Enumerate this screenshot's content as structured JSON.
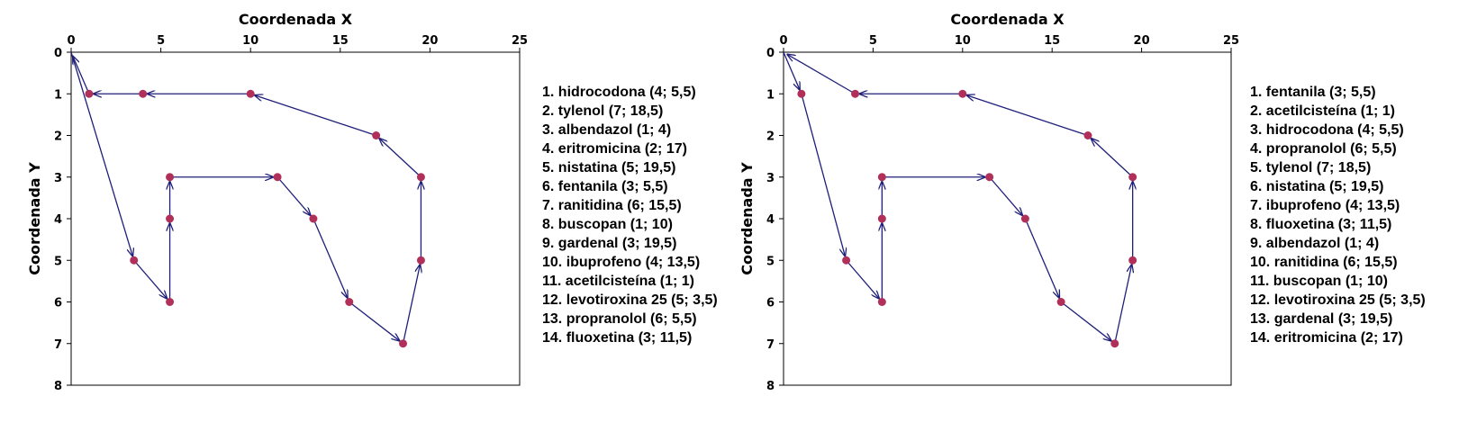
{
  "colors": {
    "line": "#1f1f7a",
    "marker": "#b0305a",
    "axis": "#000000"
  },
  "chart_data": [
    {
      "type": "line",
      "xlabel": "Coordenada X",
      "ylabel": "Coordenada Y",
      "xlim": [
        0,
        25
      ],
      "ylim": [
        8,
        0
      ],
      "xticks": [
        "0",
        "5",
        "10",
        "15",
        "20",
        "25"
      ],
      "yticks": [
        "0",
        "1",
        "2",
        "3",
        "4",
        "5",
        "6",
        "7",
        "8"
      ],
      "grid": false,
      "path": [
        [
          0,
          0
        ],
        [
          3.5,
          5
        ],
        [
          5.5,
          6
        ],
        [
          5.5,
          4
        ],
        [
          5.5,
          3
        ],
        [
          11.5,
          3
        ],
        [
          13.5,
          4
        ],
        [
          15.5,
          6
        ],
        [
          18.5,
          7
        ],
        [
          19.5,
          5
        ],
        [
          19.5,
          3
        ],
        [
          17,
          2
        ],
        [
          10,
          1
        ],
        [
          4,
          1
        ],
        [
          1,
          1
        ],
        [
          0,
          0
        ]
      ],
      "list": [
        "1. hidrocodona (4; 5,5)",
        "2. tylenol (7; 18,5)",
        "3. albendazol (1; 4)",
        "4. eritromicina (2; 17)",
        "5. nistatina (5; 19,5)",
        "6. fentanila (3; 5,5)",
        "7. ranitidina (6; 15,5)",
        "8. buscopan (1; 10)",
        "9. gardenal (3; 19,5)",
        "10. ibuprofeno (4; 13,5)",
        "11. acetilcisteína (1; 1)",
        "12. levotiroxina 25 (5; 3,5)",
        "13. propranolol (6; 5,5)",
        "14. fluoxetina (3; 11,5)"
      ]
    },
    {
      "type": "line",
      "xlabel": "Coordenada X",
      "ylabel": "Coordenada Y",
      "xlim": [
        0,
        25
      ],
      "ylim": [
        8,
        0
      ],
      "xticks": [
        "0",
        "5",
        "10",
        "15",
        "20",
        "25"
      ],
      "yticks": [
        "0",
        "1",
        "2",
        "3",
        "4",
        "5",
        "6",
        "7",
        "8"
      ],
      "grid": false,
      "path": [
        [
          0,
          0
        ],
        [
          1,
          1
        ],
        [
          3.5,
          5
        ],
        [
          5.5,
          6
        ],
        [
          5.5,
          4
        ],
        [
          5.5,
          3
        ],
        [
          11.5,
          3
        ],
        [
          13.5,
          4
        ],
        [
          15.5,
          6
        ],
        [
          18.5,
          7
        ],
        [
          19.5,
          5
        ],
        [
          19.5,
          3
        ],
        [
          17,
          2
        ],
        [
          10,
          1
        ],
        [
          4,
          1
        ],
        [
          0,
          0
        ]
      ],
      "list": [
        "1. fentanila (3; 5,5)",
        "2. acetilcisteína (1; 1)",
        "3. hidrocodona (4; 5,5)",
        "4. propranolol (6; 5,5)",
        "5. tylenol (7; 18,5)",
        "6. nistatina (5; 19,5)",
        "7. ibuprofeno (4; 13,5)",
        "8. fluoxetina (3; 11,5)",
        "9. albendazol (1; 4)",
        "10. ranitidina (6; 15,5)",
        "11. buscopan (1; 10)",
        "12. levotiroxina 25 (5; 3,5)",
        "13. gardenal (3; 19,5)",
        "14. eritromicina (2; 17)"
      ]
    }
  ]
}
